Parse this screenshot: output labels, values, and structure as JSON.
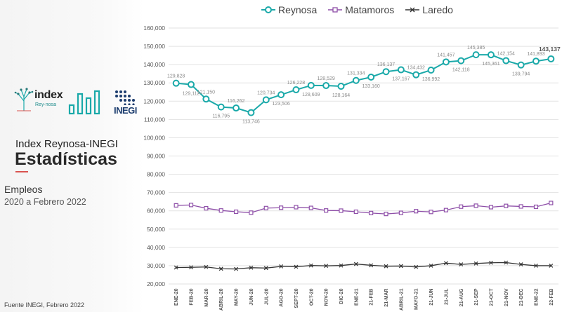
{
  "brand": {
    "index_logo": "index",
    "index_sub": "Rey·nosa",
    "inegi_logo": "INEGI",
    "colors": {
      "teal": "#1aa9a9",
      "navy": "#1b3c6e"
    }
  },
  "panel": {
    "title_line1": "Index Reynosa-INEGI",
    "title_line2": "Estadísticas",
    "subtitle": "Empleos",
    "period": "2020 a Febrero 2022",
    "source": "Fuente INEGI, Febrero 2022"
  },
  "chart_data": {
    "type": "line",
    "categories": [
      "ENE-20",
      "FEB-20",
      "MAR-20",
      "ABRIL-20",
      "MAY-20",
      "JUN-20",
      "JUL-20",
      "AGO-20",
      "SEPT-20",
      "OCT-20",
      "NOV-20",
      "DIC-20",
      "ENE-21",
      "21-FEB",
      "21-MAR",
      "ABRIL-21",
      "MAYO-21",
      "21-JUN",
      "21-JUL",
      "21-AUG",
      "21-SEP",
      "21-OCT",
      "21-NOV",
      "21-DEC",
      "ENE-22",
      "22-FEB"
    ],
    "ylim": [
      20000,
      160000
    ],
    "yticks": [
      "20,000",
      "30,000",
      "40,000",
      "50,000",
      "60,000",
      "70,000",
      "80,000",
      "90,000",
      "100,000",
      "110,000",
      "120,000",
      "130,000",
      "140,000",
      "150,000",
      "160,000"
    ],
    "legend_position": "top",
    "grid": true,
    "series": [
      {
        "name": "Reynosa",
        "color": "#1aa9a9",
        "marker": "circle",
        "values": [
          129828,
          129112,
          121150,
          116795,
          116262,
          113746,
          120734,
          123506,
          126228,
          128609,
          128529,
          128164,
          131334,
          133160,
          136137,
          137167,
          134432,
          136992,
          141457,
          142118,
          145385,
          145361,
          142154,
          139794,
          141893,
          143137
        ],
        "labels": [
          "129,828",
          "129,112",
          "121,150",
          "116,795",
          "116,262",
          "113,746",
          "120,734",
          "123,506",
          "126,228",
          "128,609",
          "128,529",
          "128,164",
          "131,334",
          "133,160",
          "136,137",
          "137,167",
          "134,432",
          "136,992",
          "141,457",
          "142,118",
          "145,385",
          "145,361",
          "142,154",
          "139,794",
          "141,893",
          "143,137"
        ]
      },
      {
        "name": "Matamoros",
        "color": "#8e4fa8",
        "marker": "square",
        "values": [
          63000,
          63200,
          61400,
          60200,
          59500,
          59000,
          61500,
          61700,
          62000,
          61600,
          60200,
          60100,
          59500,
          58800,
          58300,
          58900,
          59800,
          59400,
          60400,
          62300,
          62800,
          62000,
          62700,
          62400,
          62200,
          64300
        ]
      },
      {
        "name": "Laredo",
        "color": "#333333",
        "marker": "x",
        "values": [
          29000,
          29100,
          29300,
          28300,
          28200,
          28900,
          28700,
          29600,
          29400,
          30100,
          29900,
          30100,
          30900,
          30200,
          29700,
          29800,
          29300,
          30000,
          31400,
          30700,
          31200,
          31600,
          31700,
          30700,
          30000,
          30000
        ]
      }
    ]
  }
}
